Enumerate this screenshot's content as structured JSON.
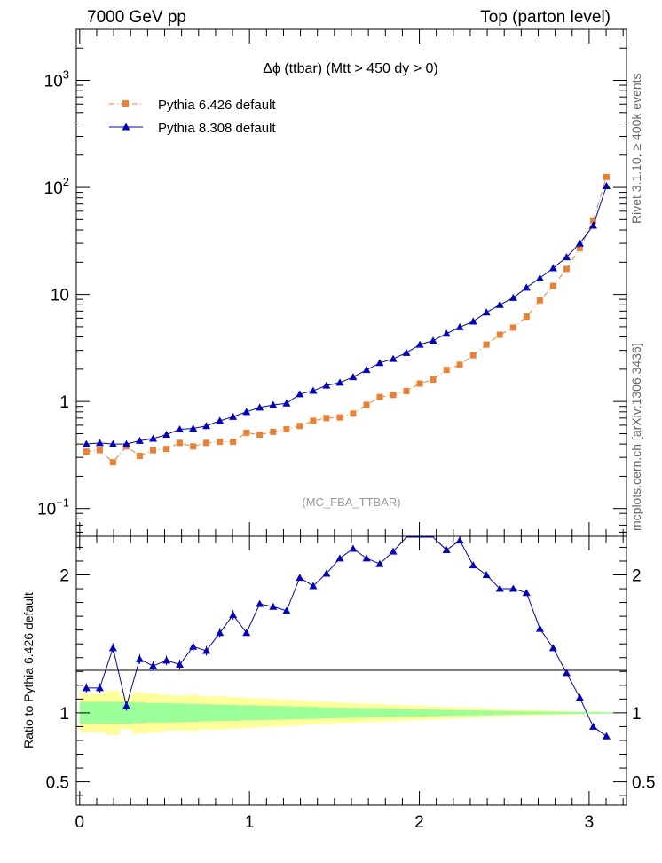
{
  "header": {
    "left": "7000 GeV pp",
    "right": "Top (parton level)"
  },
  "side_labels": {
    "rivet": "Rivet 3.1.10, ≥ 400k events",
    "mcplots": "mcplots.cern.ch [arXiv:1306.3436]"
  },
  "chart_data": [
    {
      "type": "line",
      "panel": "main",
      "title": "Δϕ (ttbar) (Mtt > 450 dy > 0)",
      "watermark": "(MC_FBA_TTBAR)",
      "xlabel": "",
      "ylabel": "",
      "xlim": [
        -0.02,
        3.22
      ],
      "ylim": [
        0.055,
        3000
      ],
      "yscale": "log",
      "y_ticks": [
        {
          "value": 0.1,
          "base": "10",
          "exp": "−1"
        },
        {
          "value": 1,
          "base": "1",
          "exp": ""
        },
        {
          "value": 10,
          "base": "10",
          "exp": ""
        },
        {
          "value": 100,
          "base": "10",
          "exp": "2"
        },
        {
          "value": 1000,
          "base": "10",
          "exp": "3"
        }
      ],
      "legend_position": "top-left",
      "x": [
        0.039,
        0.118,
        0.196,
        0.275,
        0.353,
        0.432,
        0.511,
        0.589,
        0.668,
        0.746,
        0.825,
        0.903,
        0.982,
        1.06,
        1.139,
        1.218,
        1.296,
        1.375,
        1.453,
        1.532,
        1.61,
        1.689,
        1.767,
        1.846,
        1.924,
        2.003,
        2.081,
        2.16,
        2.238,
        2.317,
        2.395,
        2.474,
        2.553,
        2.631,
        2.71,
        2.788,
        2.867,
        2.945,
        3.024,
        3.102
      ],
      "series": [
        {
          "name": "Pythia 6.426 default",
          "color": "#f08030",
          "marker": "square",
          "line": "dash-dot",
          "values": [
            0.34,
            0.35,
            0.27,
            0.38,
            0.31,
            0.35,
            0.36,
            0.41,
            0.38,
            0.41,
            0.42,
            0.42,
            0.51,
            0.49,
            0.52,
            0.55,
            0.59,
            0.66,
            0.7,
            0.71,
            0.77,
            0.93,
            1.1,
            1.15,
            1.25,
            1.47,
            1.6,
            1.97,
            2.2,
            2.7,
            3.4,
            4.2,
            4.9,
            6.2,
            8.8,
            12.0,
            17.3,
            27.0,
            49.0,
            125.0
          ]
        },
        {
          "name": "Pythia 8.308 default",
          "color": "#0000cc",
          "marker": "triangle",
          "line": "solid",
          "values": [
            0.4,
            0.41,
            0.4,
            0.4,
            0.43,
            0.45,
            0.49,
            0.55,
            0.56,
            0.59,
            0.66,
            0.72,
            0.8,
            0.88,
            0.93,
            0.96,
            1.17,
            1.26,
            1.41,
            1.5,
            1.69,
            1.97,
            2.29,
            2.5,
            2.85,
            3.4,
            3.7,
            4.3,
            4.95,
            5.6,
            6.8,
            8.0,
            9.3,
            11.6,
            14.2,
            17.6,
            22.3,
            30.0,
            44.0,
            103.0
          ]
        }
      ]
    },
    {
      "type": "line",
      "panel": "ratio",
      "ylabel": "Ratio to Pythia 6.426 default",
      "xlabel": "",
      "xlim": [
        -0.02,
        3.22
      ],
      "ylim": [
        0.33,
        2.28
      ],
      "x_ticks": [
        0,
        1,
        2,
        3
      ],
      "y_ticks": [
        0.5,
        1,
        2
      ],
      "band_inner_halfwidth": [
        0.08,
        0.08,
        0.08,
        0.08,
        0.075,
        0.07,
        0.07,
        0.068,
        0.065,
        0.062,
        0.06,
        0.058,
        0.055,
        0.052,
        0.05,
        0.048,
        0.045,
        0.043,
        0.04,
        0.038,
        0.036,
        0.034,
        0.032,
        0.03,
        0.028,
        0.026,
        0.024,
        0.022,
        0.02,
        0.018,
        0.016,
        0.014,
        0.012,
        0.011,
        0.01,
        0.009,
        0.008,
        0.007,
        0.006,
        0.005
      ],
      "band_outer_halfwidth": [
        0.14,
        0.14,
        0.16,
        0.12,
        0.15,
        0.14,
        0.13,
        0.125,
        0.13,
        0.12,
        0.12,
        0.115,
        0.11,
        0.105,
        0.1,
        0.095,
        0.09,
        0.085,
        0.08,
        0.075,
        0.072,
        0.068,
        0.064,
        0.06,
        0.056,
        0.052,
        0.048,
        0.044,
        0.04,
        0.036,
        0.032,
        0.028,
        0.024,
        0.022,
        0.019,
        0.016,
        0.013,
        0.011,
        0.009,
        0.006
      ],
      "series": [
        {
          "name": "Pythia 8.308 default",
          "color": "#0000cc",
          "marker": "triangle",
          "values": [
            1.18,
            1.18,
            1.47,
            1.05,
            1.39,
            1.34,
            1.38,
            1.35,
            1.48,
            1.45,
            1.58,
            1.71,
            1.58,
            1.79,
            1.77,
            1.74,
            1.98,
            1.92,
            2.01,
            2.12,
            2.19,
            2.12,
            2.08,
            2.17,
            2.28,
            2.31,
            2.31,
            2.18,
            2.25,
            2.07,
            2.0,
            1.9,
            1.9,
            1.87,
            1.61,
            1.47,
            1.29,
            1.11,
            0.9,
            0.83
          ]
        }
      ]
    }
  ]
}
